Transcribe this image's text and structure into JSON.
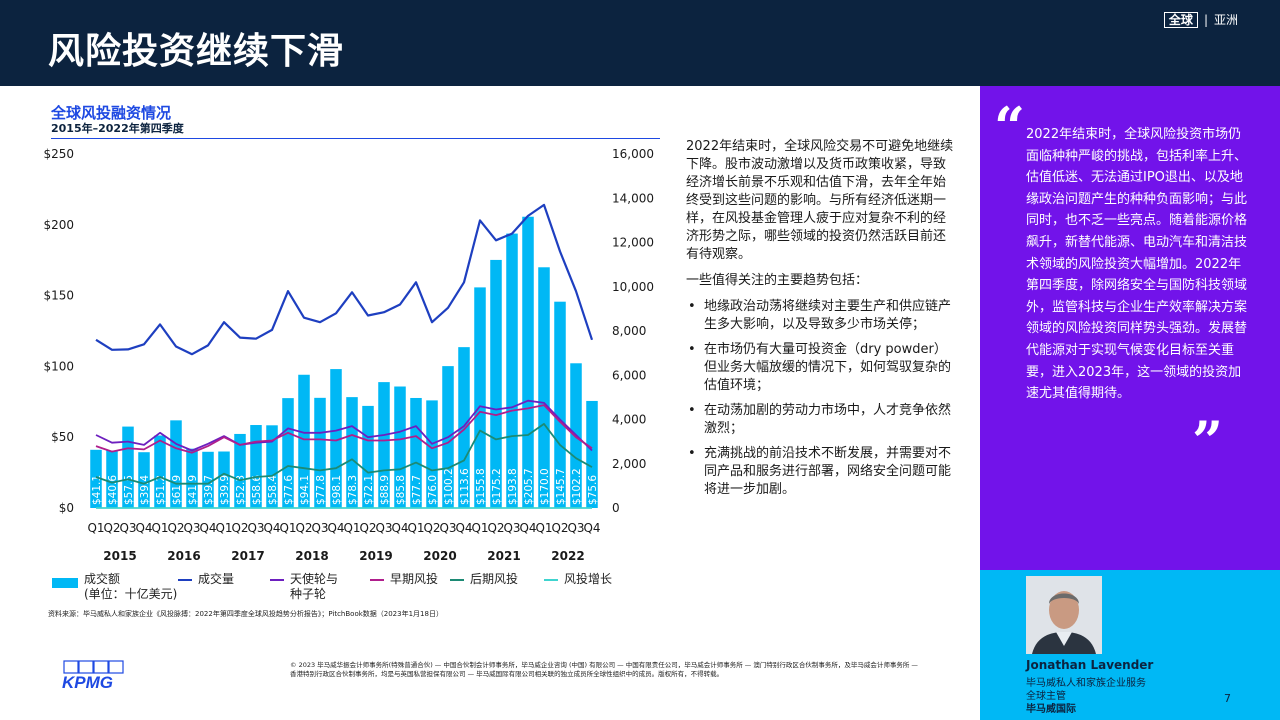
{
  "header": {
    "title": "风险投资继续下滑",
    "brand_global": "全球",
    "brand_region": "亚洲"
  },
  "chart_data": {
    "type": "bar",
    "title": "全球风投融资情况",
    "subtitle": "2015年–2022年第四季度",
    "categories": [
      "Q1",
      "Q2",
      "Q3",
      "Q4",
      "Q1",
      "Q2",
      "Q3",
      "Q4",
      "Q1",
      "Q2",
      "Q3",
      "Q4",
      "Q1",
      "Q2",
      "Q3",
      "Q4",
      "Q1",
      "Q2",
      "Q3",
      "Q4",
      "Q1",
      "Q2",
      "Q3",
      "Q4",
      "Q1",
      "Q2",
      "Q3",
      "Q4",
      "Q1",
      "Q2",
      "Q3",
      "Q4"
    ],
    "years": [
      "2015",
      "2016",
      "2017",
      "2018",
      "2019",
      "2020",
      "2021",
      "2022"
    ],
    "left_axis": {
      "min": 0,
      "max": 250,
      "ticks": [
        "$0",
        "$50",
        "$100",
        "$150",
        "$200",
        "$250"
      ]
    },
    "right_axis": {
      "min": 0,
      "max": 16000,
      "ticks": [
        "0",
        "2,000",
        "4,000",
        "6,000",
        "8,000",
        "10,000",
        "12,000",
        "14,000",
        "16,000"
      ]
    },
    "bar_series": {
      "name": "成交额\n(单位：十亿美元)",
      "color": "#00b8f5",
      "values": [
        41.1,
        40.6,
        57.5,
        39.4,
        51.2,
        61.9,
        41.9,
        39.7,
        39.9,
        52.3,
        58.6,
        58.4,
        77.6,
        94.1,
        77.8,
        98.1,
        78.3,
        72.1,
        88.9,
        85.8,
        77.7,
        76.0,
        100.2,
        113.6,
        155.8,
        175.2,
        193.8,
        205.7,
        170.0,
        145.7,
        102.2,
        75.6
      ],
      "labels": [
        "$41.1",
        "$40.6",
        "$57.5",
        "$39.4",
        "$51.2",
        "$61.9",
        "$41.9",
        "$39.7",
        "$39.9",
        "$52.3",
        "$58.6",
        "$58.4",
        "$77.6",
        "$94.1",
        "$77.8",
        "$98.1",
        "$78.3",
        "$72.1",
        "$88.9",
        "$85.8",
        "$77.7",
        "$76.0",
        "$100.2",
        "$113.6",
        "$155.8",
        "$175.2",
        "$193.8",
        "$205.7",
        "$170.0",
        "$145.7",
        "$102.2",
        "$75.6"
      ]
    },
    "line_series": [
      {
        "name": "成交量",
        "color": "#1e3fc0",
        "values": [
          7600,
          7150,
          7170,
          7400,
          8300,
          7300,
          6950,
          7350,
          8400,
          7700,
          7650,
          8050,
          9800,
          8600,
          8400,
          8800,
          9750,
          8700,
          8850,
          9200,
          10200,
          8400,
          9050,
          10200,
          13000,
          12100,
          12400,
          13200,
          13700,
          11600,
          9800,
          7600
        ]
      },
      {
        "name": "天使轮与\n种子轮",
        "color": "#6d1fbf",
        "values": [
          3300,
          2950,
          3000,
          2850,
          3400,
          2900,
          2600,
          2900,
          3250,
          2850,
          2950,
          3000,
          3600,
          3400,
          3400,
          3500,
          3700,
          3200,
          3300,
          3450,
          3700,
          2900,
          3200,
          3700,
          4600,
          4450,
          4550,
          4850,
          4750,
          4000,
          3300,
          2600
        ]
      },
      {
        "name": "早期风投",
        "color": "#b01e8c",
        "values": [
          2800,
          2550,
          2700,
          2650,
          3050,
          2700,
          2500,
          2800,
          3200,
          2850,
          3000,
          3050,
          3400,
          3100,
          3100,
          3050,
          3300,
          3050,
          3050,
          3100,
          3250,
          2700,
          2950,
          3550,
          4350,
          4200,
          4400,
          4500,
          4650,
          3900,
          3200,
          2700
        ]
      },
      {
        "name": "后期风投",
        "color": "#1c8a74",
        "values": [
          1400,
          1150,
          1300,
          1100,
          1400,
          1100,
          1100,
          1100,
          1550,
          1250,
          1400,
          1450,
          1900,
          1800,
          1700,
          1800,
          2200,
          1600,
          1700,
          1750,
          2050,
          1700,
          1800,
          2150,
          3500,
          3100,
          3250,
          3300,
          3800,
          2850,
          2250,
          1850
        ]
      },
      {
        "name": "风投增长",
        "color": "#3fd4cf",
        "values": [
          0,
          0,
          0,
          0,
          0,
          0,
          0,
          0,
          0,
          0,
          0,
          0,
          0,
          0,
          0,
          0,
          0,
          0,
          0,
          0,
          0,
          0,
          0,
          0,
          0,
          0,
          0,
          0,
          0,
          0,
          0,
          0
        ]
      }
    ]
  },
  "legend": {
    "volume": "成交额\n(单位：十亿美元)",
    "count": "成交量",
    "angel": "天使轮与\n种子轮",
    "early": "早期风投",
    "late": "后期风投",
    "growth": "风投增长"
  },
  "source": "资料来源：毕马威私人和家族企业《风投脉搏：2022年第四季度全球风投趋势分析报告》；PitchBook数据（2023年1月18日）",
  "body": {
    "intro": "2022年结束时，全球风险交易不可避免地继续下降。股市波动激增以及货币政策收紧，导致经济增长前景不乐观和估值下滑，去年全年始终受到这些问题的影响。与所有经济低迷期一样，在风投基金管理人疲于应对复杂不利的经济形势之际，哪些领域的投资仍然活跃目前还有待观察。",
    "lead": "一些值得关注的主要趋势包括：",
    "bullets": [
      "地缘政治动荡将继续对主要生产和供应链产生多大影响，以及导致多少市场关停；",
      "在市场仍有大量可投资金（dry powder）但业务大幅放缓的情况下，如何驾驭复杂的估值环境；",
      "在动荡加剧的劳动力市场中，人才竞争依然激烈；",
      "充满挑战的前沿技术不断发展，并需要对不同产品和服务进行部署，网络安全问题可能将进一步加剧。"
    ]
  },
  "quote": {
    "open_mark": "“",
    "close_mark": "”",
    "text": "2022年结束时，全球风险投资市场仍面临种种严峻的挑战，包括利率上升、估值低迷、无法通过IPO退出、以及地缘政治问题产生的种种负面影响；与此同时，也不乏一些亮点。随着能源价格飙升，新替代能源、电动汽车和清洁技术领域的风险投资大幅增加。2022年第四季度，除网络安全与国防科技领域外，监管科技与企业生产效率解决方案领域的风险投资同样势头强劲。发展替代能源对于实现气候变化目标至关重要，进入2023年，这一领域的投资加速尤其值得期待。"
  },
  "profile": {
    "name": "Jonathan Lavender",
    "line1": "毕马威私人和家族企业服务",
    "line2": "全球主管",
    "line3": "毕马威国际"
  },
  "page_number": "7",
  "logo_text": "KPMG",
  "footer": "© 2023 毕马威华振会计师事务所(特殊普通合伙) — 中国合伙制会计师事务所，毕马威企业咨询 (中国) 有限公司 — 中国有限责任公司，毕马威会计师事务所 — 澳门特别行政区合伙制事务所，及毕马威会计师事务所 — 香港特别行政区合伙制事务所，均是与英国私营担保有限公司 — 毕马威国际有限公司相关联的独立成员所全球性组织中的成员。版权所有，不得转载。",
  "colors": {
    "navy": "#0c233f",
    "blue": "#1e49e2",
    "cyan": "#00b8f5",
    "purple": "#7213ea"
  }
}
